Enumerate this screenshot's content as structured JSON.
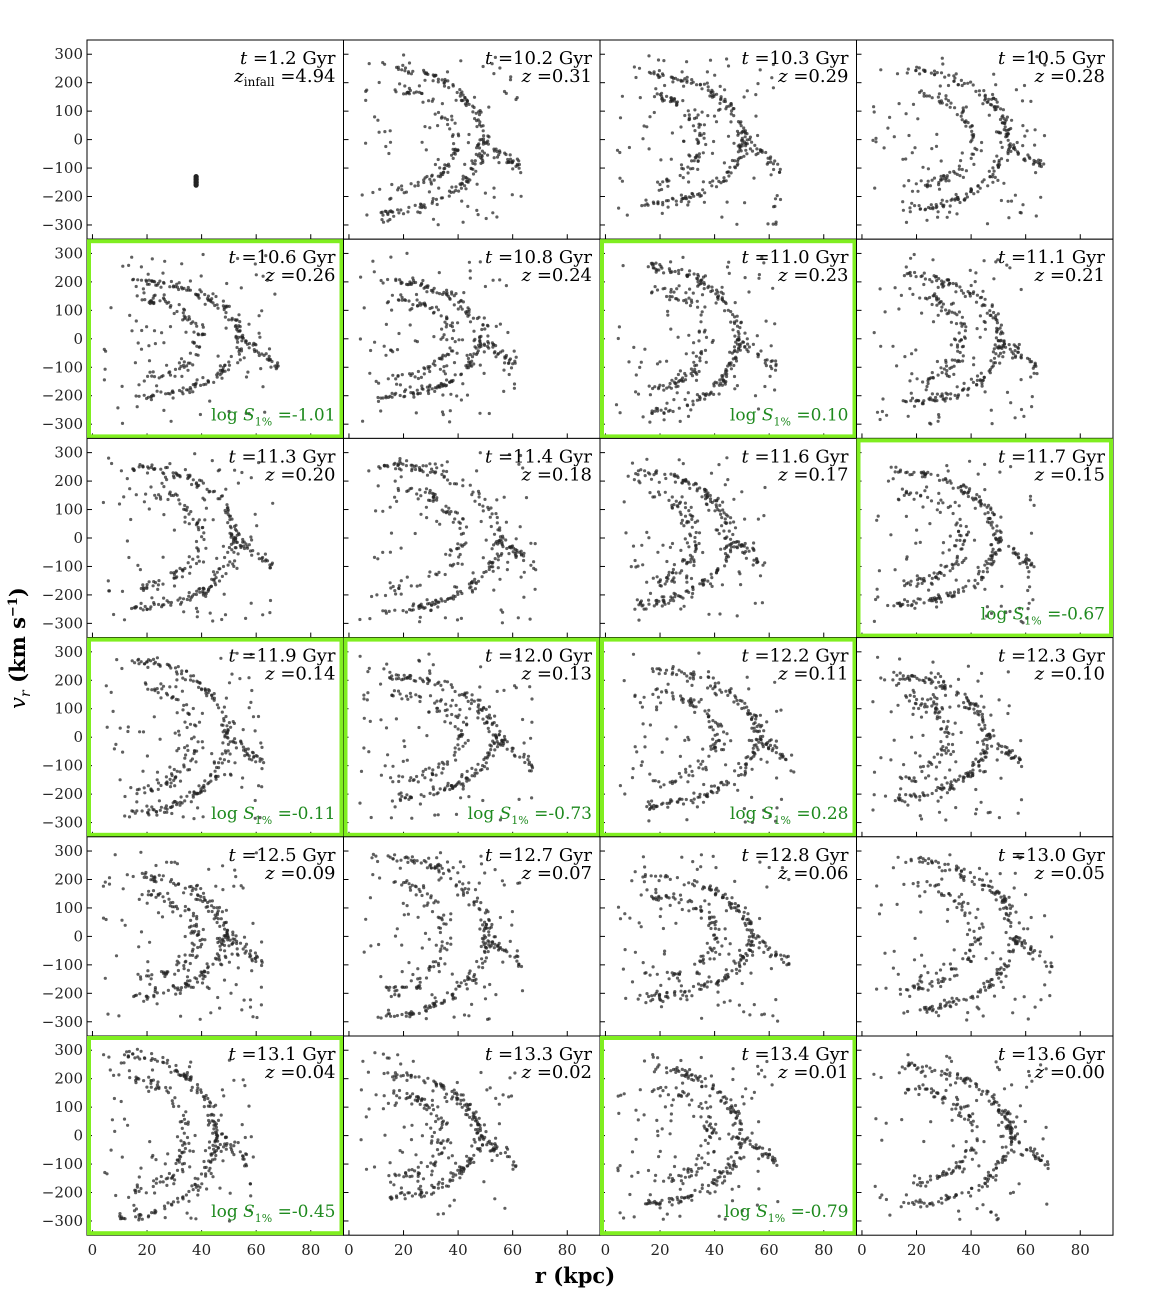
{
  "chart_data": {
    "type": "scatter",
    "layout": "6x4 panel grid",
    "xlabel": "r (kpc)",
    "ylabel": "v_r (km s^-1)",
    "xlim": [
      -2,
      92
    ],
    "ylim": [
      -350,
      350
    ],
    "xticks": [
      0,
      20,
      40,
      60,
      80
    ],
    "yticks": [
      300,
      200,
      100,
      0,
      -100,
      -200,
      -300
    ],
    "grid": false,
    "highlight_color": "#80ee20",
    "metric_color": "#1f8a1f",
    "point_color": "#222222",
    "panels": [
      {
        "t": "10.2 Gyr",
        "z": "0.31"
      },
      {
        "t": "1.2 Gyr",
        "z": "4.94",
        "z_label": "z_infall",
        "points": [
          [
            38,
            -160
          ],
          [
            38,
            -150
          ],
          [
            38,
            -140
          ],
          [
            38,
            -130
          ]
        ]
      },
      {
        "t": "10.3 Gyr",
        "z": "0.29"
      },
      {
        "t": "10.5 Gyr",
        "z": "0.28"
      },
      {
        "t": "10.6 Gyr",
        "z": "0.26",
        "highlight": true,
        "logS": "-1.01"
      },
      {
        "t": "10.8 Gyr",
        "z": "0.24"
      },
      {
        "t": "11.0 Gyr",
        "z": "0.23",
        "highlight": true,
        "logS": "0.10"
      },
      {
        "t": "11.1 Gyr",
        "z": "0.21"
      },
      {
        "t": "11.3 Gyr",
        "z": "0.20"
      },
      {
        "t": "11.4 Gyr",
        "z": "0.18"
      },
      {
        "t": "11.6 Gyr",
        "z": "0.17"
      },
      {
        "t": "11.7 Gyr",
        "z": "0.15",
        "highlight": true,
        "logS": "-0.67"
      },
      {
        "t": "11.9 Gyr",
        "z": "0.14",
        "highlight": true,
        "logS": "-0.11"
      },
      {
        "t": "12.0 Gyr",
        "z": "0.13",
        "highlight": true,
        "logS": "-0.73"
      },
      {
        "t": "12.2 Gyr",
        "z": "0.11",
        "highlight": true,
        "logS": "0.28"
      },
      {
        "t": "12.3 Gyr",
        "z": "0.10"
      },
      {
        "t": "12.5 Gyr",
        "z": "0.09"
      },
      {
        "t": "12.7 Gyr",
        "z": "0.07"
      },
      {
        "t": "12.8 Gyr",
        "z": "0.06"
      },
      {
        "t": "13.0 Gyr",
        "z": "0.05"
      },
      {
        "t": "13.1 Gyr",
        "z": "0.04",
        "highlight": true,
        "logS": "-0.45"
      },
      {
        "t": "13.3 Gyr",
        "z": "0.02"
      },
      {
        "t": "13.4 Gyr",
        "z": "0.01",
        "highlight": true,
        "logS": "-0.79"
      },
      {
        "t": "13.6 Gyr",
        "z": "0.00"
      }
    ]
  }
}
